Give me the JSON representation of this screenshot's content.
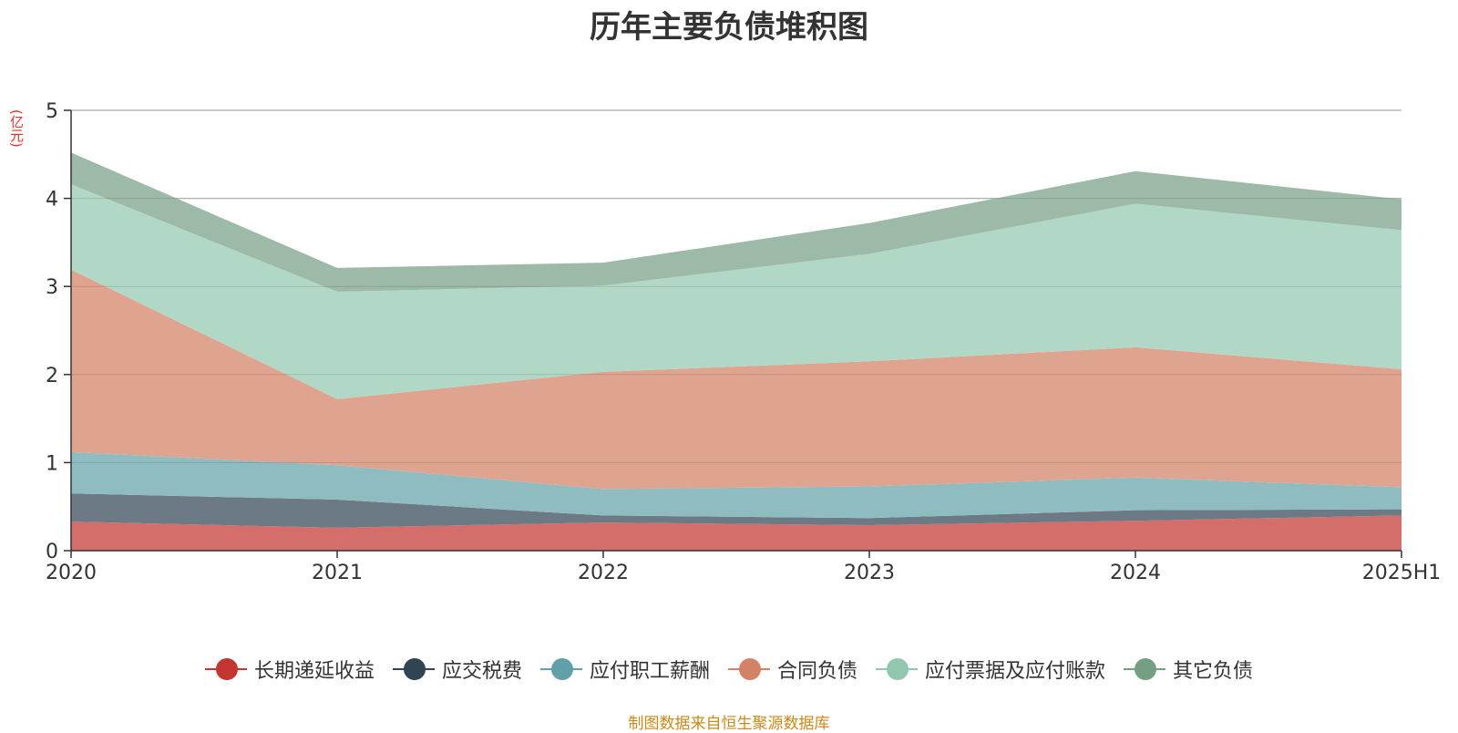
{
  "chart_data": {
    "type": "area",
    "stacked": true,
    "title": "历年主要负债堆积图",
    "ylabel": "(亿元)",
    "x": [
      "2020",
      "2021",
      "2022",
      "2023",
      "2024",
      "2025H1"
    ],
    "ylim": [
      0,
      5
    ],
    "yticks": [
      "0",
      "1",
      "2",
      "3",
      "4",
      "5"
    ],
    "grid": true,
    "legend_position": "bottom",
    "series": [
      {
        "name": "长期递延收益",
        "color": "#c23531",
        "fill": "#d46e6a",
        "values": [
          0.33,
          0.26,
          0.32,
          0.29,
          0.34,
          0.4
        ]
      },
      {
        "name": "应交税费",
        "color": "#2f4554",
        "fill": "#6b7a84",
        "values": [
          0.32,
          0.32,
          0.08,
          0.08,
          0.12,
          0.07
        ]
      },
      {
        "name": "应付职工薪酬",
        "color": "#61a0a8",
        "fill": "#8fbcc1",
        "values": [
          0.47,
          0.39,
          0.3,
          0.36,
          0.37,
          0.25
        ]
      },
      {
        "name": "合同负债",
        "color": "#d48265",
        "fill": "#dfa48f",
        "values": [
          2.07,
          0.75,
          1.33,
          1.42,
          1.48,
          1.34
        ]
      },
      {
        "name": "应付票据及应付账款",
        "color": "#91c7ae",
        "fill": "#b1d8c6",
        "values": [
          0.97,
          1.22,
          0.98,
          1.22,
          1.63,
          1.58
        ]
      },
      {
        "name": "其它负债",
        "color": "#749f83",
        "fill": "#9db9a7",
        "values": [
          0.36,
          0.27,
          0.26,
          0.35,
          0.37,
          0.35
        ]
      }
    ]
  },
  "footer": {
    "source": "制图数据来自恒生聚源数据库"
  }
}
